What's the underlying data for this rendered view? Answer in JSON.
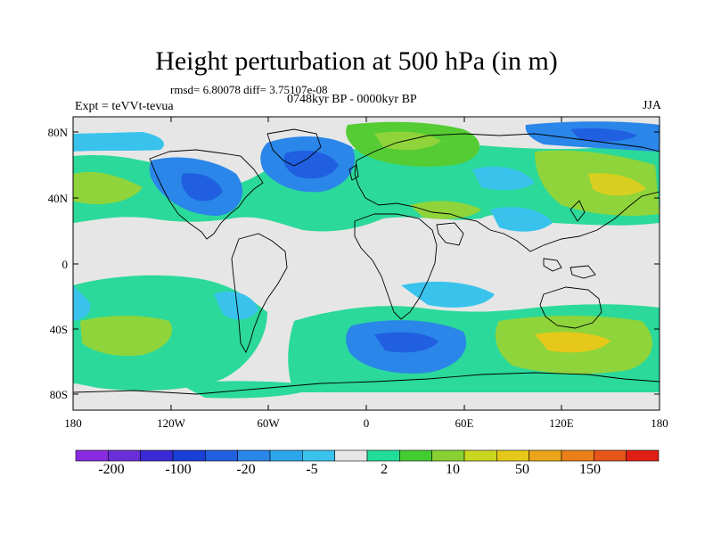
{
  "title": "Height perturbation at 500 hPa (in m)",
  "stats": "rmsd= 6.80078 diff= 3.75107e-08",
  "experiment": "Expt = teVVt-tevua",
  "period": "0748kyr BP - 0000kyr BP",
  "season": "JJA",
  "map": {
    "lat_labels": [
      "80N",
      "40N",
      "0",
      "40S",
      "80S"
    ],
    "lon_labels": [
      "180",
      "120W",
      "60W",
      "0",
      "60E",
      "120E",
      "180"
    ]
  },
  "colorbar": {
    "colors": [
      "#8a2be2",
      "#6a2ed9",
      "#3a2ad6",
      "#1a3fd6",
      "#1f5fe0",
      "#2a86e8",
      "#2ba6ea",
      "#39c3ec",
      "#e6e6e6",
      "#22dd99",
      "#44cc33",
      "#88d133",
      "#c8d61f",
      "#e6c81a",
      "#eaa51a",
      "#ea7f1a",
      "#e6551a",
      "#e01f14"
    ],
    "labels": [
      "-200",
      "-100",
      "-20",
      "-5",
      "2",
      "10",
      "50",
      "150"
    ]
  }
}
